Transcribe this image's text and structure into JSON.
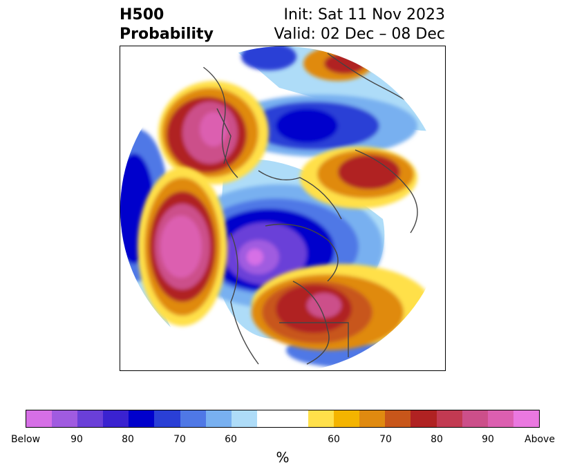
{
  "title": {
    "left_line1": "H500",
    "left_line2": "Probability",
    "right_line1": "Init: Sat 11 Nov 2023",
    "right_line2": "Valid: 02 Dec – 08 Dec"
  },
  "colorbar": {
    "colors": [
      "#d66fe6",
      "#a05be0",
      "#6a3fd8",
      "#3a22d0",
      "#0000cc",
      "#2a3fd6",
      "#4f78e6",
      "#78b0f0",
      "#aedcf8",
      "#ffffff",
      "#ffe04a",
      "#f4b400",
      "#e08a10",
      "#c8561a",
      "#b02222",
      "#c23a52",
      "#cc4f8a",
      "#dc5fb0",
      "#ea78e0"
    ],
    "tick_labels": [
      "Below",
      "90",
      "80",
      "70",
      "60",
      "60",
      "70",
      "80",
      "90",
      "Above"
    ],
    "label": "%"
  }
}
